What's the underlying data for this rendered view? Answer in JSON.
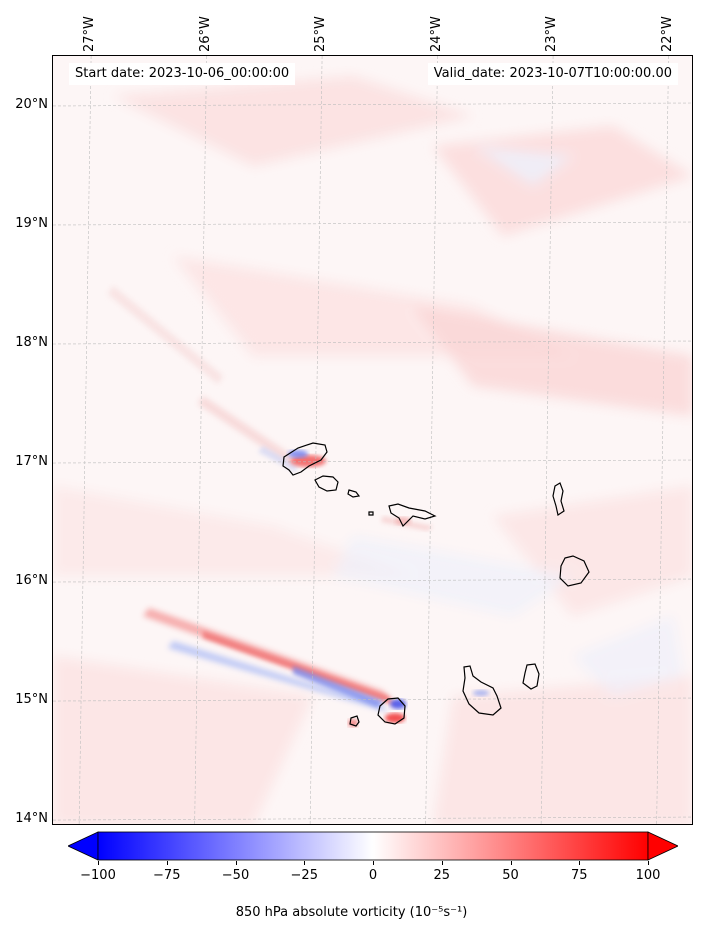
{
  "map": {
    "header_left": "Start date: 2023-10-06_00:00:00",
    "header_right": "Valid_date: 2023-10-07T10:00:00.00",
    "lon_ticks": [
      "27°W",
      "26°W",
      "25°W",
      "24°W",
      "23°W",
      "22°W"
    ],
    "lat_ticks": [
      "20°N",
      "19°N",
      "18°N",
      "17°N",
      "16°N",
      "15°N",
      "14°N"
    ],
    "extent": {
      "lon_min": -27.33,
      "lon_max": -21.78,
      "lat_min": 13.95,
      "lat_max": 20.42
    },
    "gridlines": true,
    "background_color": "#fdf6f6",
    "coastline_color": "#000000",
    "islands": [
      "Santo Antão",
      "São Vicente",
      "Santa Luzia",
      "São Nicolau",
      "Sal",
      "Boa Vista",
      "Santiago",
      "Fogo",
      "Maio",
      "Brava"
    ]
  },
  "colorbar": {
    "ticks": [
      "−100",
      "−75",
      "−50",
      "−25",
      "0",
      "25",
      "50",
      "75",
      "100"
    ],
    "min": -100,
    "max": 100,
    "colormap": "bwr",
    "extend": "both",
    "label": "850 hPa absolute vorticity (10⁻⁵s⁻¹)",
    "colors": {
      "negative": "#0000ff",
      "zero": "#ffffff",
      "positive": "#ff0000"
    }
  }
}
